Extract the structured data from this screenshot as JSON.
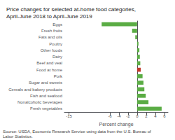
{
  "chart_data": {
    "type": "bar",
    "orientation": "horizontal",
    "title": "Price changes for selected at-home food categories,\nApril-June 2018 to April-June 2019",
    "categories": [
      "Fresh vegetables",
      "Nonalcoholic beverages",
      "Fish and seafood",
      "Cereals and bakery products",
      "Sugar and sweets",
      "Pork",
      "Food at home",
      "Beef and veal",
      "Dairy",
      "Other foods",
      "Poultry",
      "Fats and oils",
      "Fresh fruits",
      "Eggs"
    ],
    "values": [
      5.4,
      2.5,
      1.9,
      1.6,
      1.4,
      1.2,
      0.8,
      0.7,
      0.6,
      0.5,
      0.3,
      -0.4,
      -1.1,
      -7.8
    ],
    "colors": [
      "#5aac44",
      "#5aac44",
      "#5aac44",
      "#5aac44",
      "#5aac44",
      "#5aac44",
      "#c0392b",
      "#5aac44",
      "#5aac44",
      "#5aac44",
      "#5aac44",
      "#5aac44",
      "#5aac44",
      "#5aac44"
    ],
    "xlabel": "Percent change",
    "xlim": [
      -16,
      6.8
    ],
    "xticks": [
      -15,
      -6,
      -4,
      -2,
      0,
      2,
      4,
      6
    ],
    "grid": false,
    "annotations": [
      "Source: USDA, Economic Research Service using data from the U.S. Bureau of\nLabor Statistics."
    ]
  }
}
